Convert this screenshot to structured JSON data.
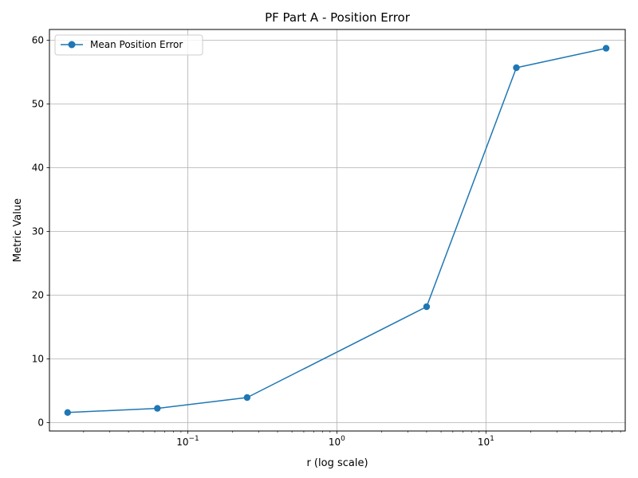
{
  "chart_data": {
    "type": "line",
    "title": "PF Part A - Position Error",
    "xlabel": "r (log scale)",
    "ylabel": "Metric Value",
    "x_scale": "log",
    "xlim": [
      0.0118,
      86
    ],
    "ylim": [
      -1.3,
      61.7
    ],
    "x_ticks": [
      {
        "value": 0.1,
        "base": "10",
        "exp": "−1"
      },
      {
        "value": 1,
        "base": "10",
        "exp": "0"
      },
      {
        "value": 10,
        "base": "10",
        "exp": "1"
      }
    ],
    "y_ticks": [
      0,
      10,
      20,
      30,
      40,
      50,
      60
    ],
    "grid": true,
    "legend_position": "top-left",
    "series": [
      {
        "name": "Mean Position Error",
        "color": "#1f77b4",
        "marker": "circle",
        "x": [
          0.015625,
          0.0625,
          0.25,
          4,
          16,
          64
        ],
        "y": [
          1.6,
          2.25,
          3.95,
          18.2,
          55.7,
          58.75
        ]
      }
    ]
  }
}
